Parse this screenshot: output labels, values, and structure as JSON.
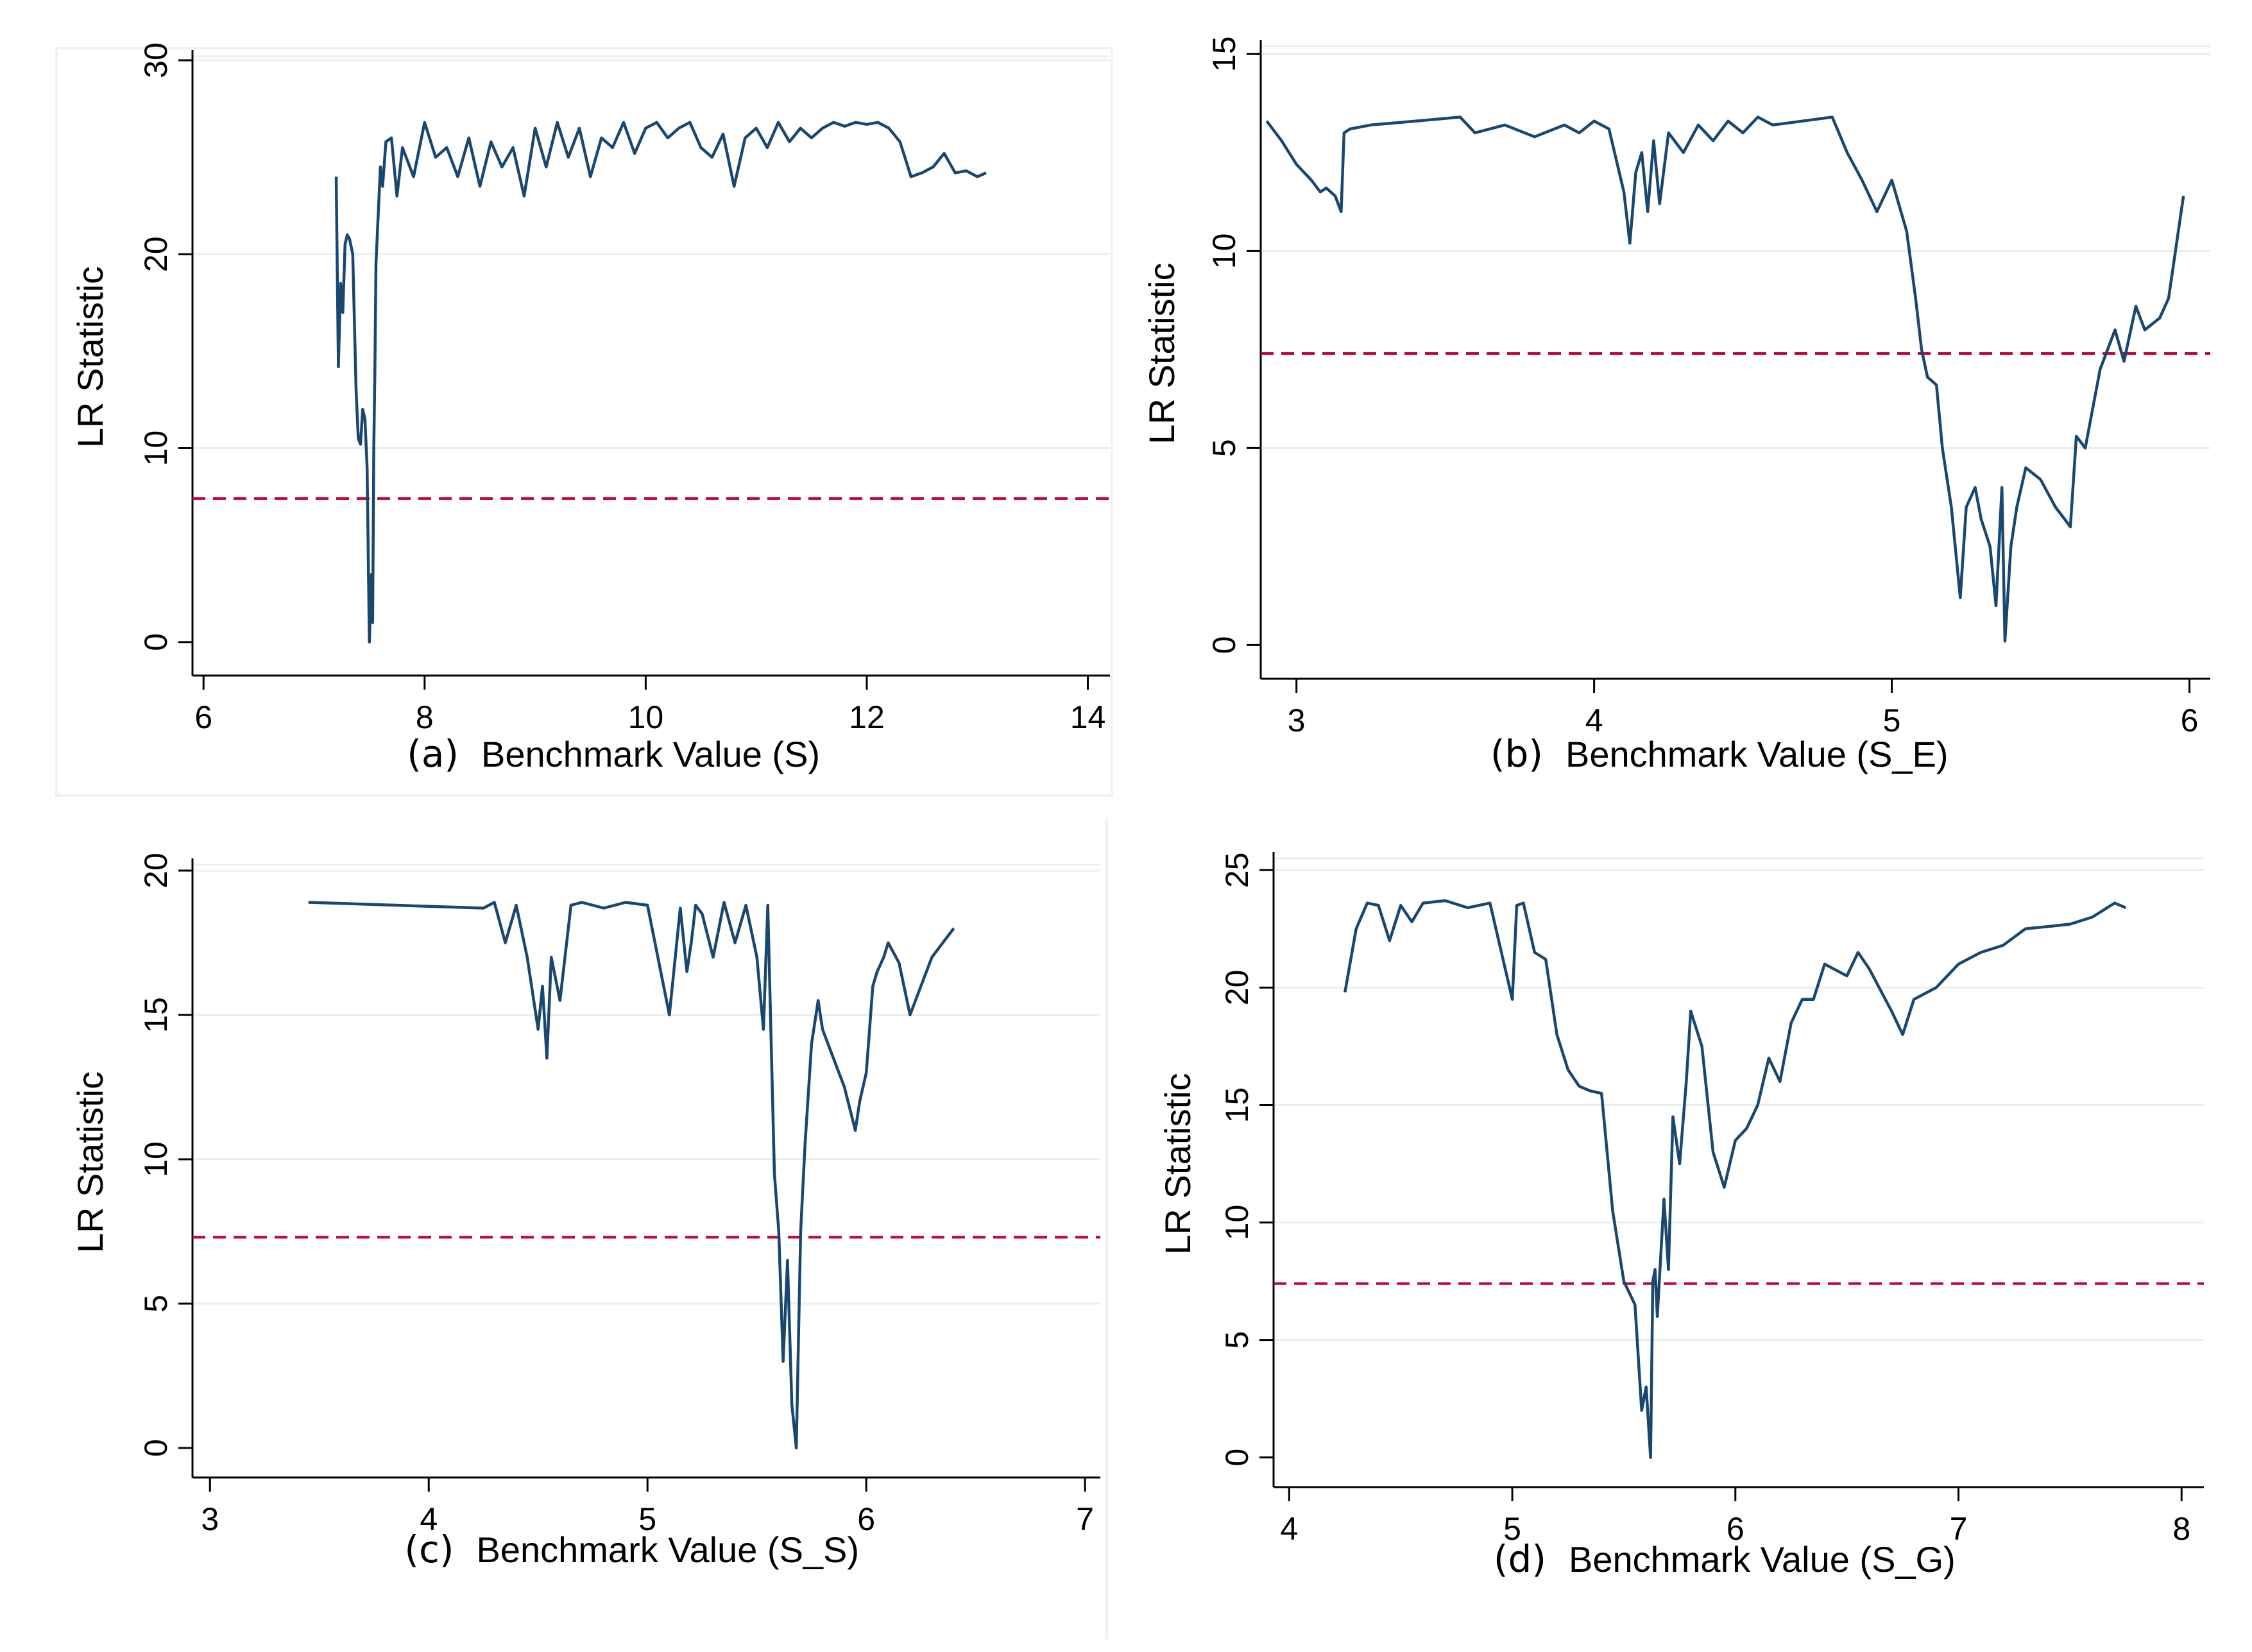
{
  "chart_data": [
    {
      "type": "line",
      "panel": "(a)",
      "xlabel": "Benchmark Value (S)",
      "ylabel": "LR Statistic",
      "xlim": [
        5.9,
        14.2
      ],
      "ylim": [
        -0.8,
        30.2
      ],
      "xticks": [
        6,
        8,
        10,
        12,
        14
      ],
      "yticks": [
        0,
        10,
        20,
        30
      ],
      "reference_line": 7.4,
      "series": [
        {
          "name": "LR Statistic",
          "x": [
            7.2,
            7.22,
            7.24,
            7.26,
            7.28,
            7.3,
            7.32,
            7.35,
            7.38,
            7.4,
            7.42,
            7.44,
            7.46,
            7.48,
            7.5,
            7.52,
            7.53,
            7.54,
            7.55,
            7.56,
            7.58,
            7.6,
            7.62,
            7.65,
            7.7,
            7.75,
            7.8,
            7.9,
            8.0,
            8.1,
            8.2,
            8.3,
            8.4,
            8.5,
            8.6,
            8.7,
            8.8,
            8.9,
            9.0,
            9.1,
            9.2,
            9.3,
            9.4,
            9.5,
            9.6,
            9.7,
            9.8,
            9.9,
            10.0,
            10.1,
            10.2,
            10.3,
            10.4,
            10.5,
            10.6,
            10.7,
            10.8,
            10.9,
            11.0,
            11.1,
            11.2,
            11.3,
            11.4,
            11.5,
            11.6,
            11.7,
            11.8,
            11.9,
            12.0,
            12.1,
            12.2,
            12.3,
            12.4,
            12.5,
            12.6,
            12.7,
            12.8,
            12.9,
            13.0,
            13.08
          ],
          "values": [
            24.0,
            14.2,
            18.5,
            17.0,
            20.5,
            21.0,
            20.8,
            20.0,
            13.0,
            10.5,
            10.2,
            12.0,
            11.5,
            9.0,
            0.0,
            3.5,
            1.0,
            10.0,
            14.0,
            19.5,
            22.0,
            24.5,
            23.5,
            25.8,
            26.0,
            23.0,
            25.5,
            24.0,
            26.8,
            25.0,
            25.5,
            24.0,
            26.0,
            23.5,
            25.8,
            24.5,
            25.5,
            23.0,
            26.5,
            24.5,
            26.8,
            25.0,
            26.5,
            24.0,
            26.0,
            25.5,
            26.8,
            25.2,
            26.5,
            26.8,
            26.0,
            26.5,
            26.8,
            25.5,
            25.0,
            26.2,
            23.5,
            26.0,
            26.5,
            25.5,
            26.8,
            25.8,
            26.5,
            26.0,
            26.5,
            26.8,
            26.6,
            26.8,
            26.7,
            26.8,
            26.5,
            25.8,
            24.0,
            24.2,
            24.5,
            25.2,
            24.2,
            24.3,
            24.0,
            24.2
          ]
        }
      ]
    },
    {
      "type": "line",
      "panel": "(b)",
      "xlabel": "Benchmark Value (S_E)",
      "ylabel": "LR Statistic",
      "xlim": [
        2.88,
        6.07
      ],
      "ylim": [
        -0.4,
        15.2
      ],
      "xticks": [
        3,
        4,
        5,
        6
      ],
      "yticks": [
        0,
        5,
        10,
        15
      ],
      "reference_line": 7.4,
      "series": [
        {
          "name": "LR Statistic",
          "x": [
            2.9,
            2.95,
            3.0,
            3.05,
            3.08,
            3.1,
            3.13,
            3.15,
            3.16,
            3.18,
            3.25,
            3.4,
            3.55,
            3.6,
            3.7,
            3.8,
            3.9,
            3.95,
            4.0,
            4.05,
            4.1,
            4.12,
            4.14,
            4.16,
            4.18,
            4.2,
            4.22,
            4.25,
            4.3,
            4.35,
            4.4,
            4.45,
            4.5,
            4.55,
            4.6,
            4.7,
            4.8,
            4.85,
            4.9,
            4.95,
            5.0,
            5.05,
            5.08,
            5.1,
            5.12,
            5.15,
            5.17,
            5.2,
            5.23,
            5.25,
            5.28,
            5.3,
            5.33,
            5.35,
            5.37,
            5.38,
            5.4,
            5.42,
            5.45,
            5.5,
            5.55,
            5.58,
            5.6,
            5.62,
            5.65,
            5.7,
            5.75,
            5.78,
            5.82,
            5.85,
            5.9,
            5.93,
            5.98
          ],
          "values": [
            13.3,
            12.8,
            12.2,
            11.8,
            11.5,
            11.6,
            11.4,
            11.0,
            13.0,
            13.1,
            13.2,
            13.3,
            13.4,
            13.0,
            13.2,
            12.9,
            13.2,
            13.0,
            13.3,
            13.1,
            11.5,
            10.2,
            12.0,
            12.5,
            11.0,
            12.8,
            11.2,
            13.0,
            12.5,
            13.2,
            12.8,
            13.3,
            13.0,
            13.4,
            13.2,
            13.3,
            13.4,
            12.5,
            11.8,
            11.0,
            11.8,
            10.5,
            8.8,
            7.5,
            6.8,
            6.6,
            5.0,
            3.5,
            1.2,
            3.5,
            4.0,
            3.2,
            2.5,
            1.0,
            4.0,
            0.1,
            2.5,
            3.5,
            4.5,
            4.2,
            3.5,
            3.2,
            3.0,
            5.3,
            5.0,
            7.0,
            8.0,
            7.2,
            8.6,
            8.0,
            8.3,
            8.8,
            11.4
          ]
        }
      ]
    },
    {
      "type": "line",
      "panel": "(c)",
      "xlabel": "Benchmark Value (S_S)",
      "ylabel": "LR Statistic",
      "xlim": [
        2.92,
        7.07
      ],
      "ylim": [
        -0.4,
        20.2
      ],
      "xticks": [
        3,
        4,
        5,
        6,
        7
      ],
      "yticks": [
        0,
        5,
        10,
        15,
        20
      ],
      "reference_line": 7.3,
      "series": [
        {
          "name": "LR Statistic",
          "x": [
            3.45,
            4.25,
            4.3,
            4.35,
            4.4,
            4.45,
            4.5,
            4.52,
            4.54,
            4.56,
            4.6,
            4.65,
            4.7,
            4.8,
            4.9,
            5.0,
            5.1,
            5.15,
            5.18,
            5.2,
            5.22,
            5.25,
            5.3,
            5.35,
            5.4,
            5.45,
            5.5,
            5.53,
            5.55,
            5.58,
            5.6,
            5.62,
            5.64,
            5.66,
            5.68,
            5.7,
            5.72,
            5.75,
            5.78,
            5.8,
            5.85,
            5.9,
            5.95,
            5.97,
            6.0,
            6.03,
            6.05,
            6.08,
            6.1,
            6.15,
            6.2,
            6.25,
            6.3,
            6.35,
            6.4
          ],
          "values": [
            18.9,
            18.7,
            18.9,
            17.5,
            18.8,
            17.0,
            14.5,
            16.0,
            13.5,
            17.0,
            15.5,
            18.8,
            18.9,
            18.7,
            18.9,
            18.8,
            15.0,
            18.7,
            16.5,
            17.5,
            18.8,
            18.5,
            17.0,
            18.9,
            17.5,
            18.8,
            17.0,
            14.5,
            18.8,
            9.5,
            7.5,
            3.0,
            6.5,
            1.5,
            0.0,
            7.5,
            10.5,
            14.0,
            15.5,
            14.5,
            13.5,
            12.5,
            11.0,
            12.0,
            13.0,
            16.0,
            16.5,
            17.0,
            17.5,
            16.8,
            15.0,
            16.0,
            17.0,
            17.5,
            18.0
          ]
        }
      ]
    },
    {
      "type": "line",
      "panel": "(d)",
      "xlabel": "Benchmark Value (S_G)",
      "ylabel": "LR Statistic",
      "xlim": [
        3.93,
        8.1
      ],
      "ylim": [
        -0.5,
        25.5
      ],
      "xticks": [
        4,
        5,
        6,
        7,
        8
      ],
      "yticks": [
        0,
        5,
        10,
        15,
        20,
        25
      ],
      "reference_line": 7.4,
      "series": [
        {
          "name": "LR Statistic",
          "x": [
            4.25,
            4.3,
            4.35,
            4.4,
            4.45,
            4.5,
            4.55,
            4.6,
            4.7,
            4.8,
            4.9,
            5.0,
            5.02,
            5.05,
            5.1,
            5.15,
            5.2,
            5.25,
            5.3,
            5.35,
            5.4,
            5.45,
            5.5,
            5.55,
            5.58,
            5.6,
            5.62,
            5.63,
            5.64,
            5.65,
            5.68,
            5.7,
            5.72,
            5.75,
            5.78,
            5.8,
            5.85,
            5.9,
            5.95,
            6.0,
            6.05,
            6.1,
            6.15,
            6.2,
            6.25,
            6.3,
            6.35,
            6.4,
            6.5,
            6.55,
            6.6,
            6.7,
            6.75,
            6.8,
            6.9,
            7.0,
            7.1,
            7.2,
            7.3,
            7.4,
            7.5,
            7.6,
            7.7,
            7.75
          ],
          "values": [
            19.8,
            22.5,
            23.6,
            23.5,
            22.0,
            23.5,
            22.8,
            23.6,
            23.7,
            23.4,
            23.6,
            19.5,
            23.5,
            23.6,
            21.5,
            21.2,
            18.0,
            16.5,
            15.8,
            15.6,
            15.5,
            10.5,
            7.5,
            6.5,
            2.0,
            3.0,
            0.0,
            7.5,
            8.0,
            6.0,
            11.0,
            8.0,
            14.5,
            12.5,
            16.0,
            19.0,
            17.5,
            13.0,
            11.5,
            13.5,
            14.0,
            15.0,
            17.0,
            16.0,
            18.5,
            19.5,
            19.5,
            21.0,
            20.5,
            21.5,
            20.8,
            19.0,
            18.0,
            19.5,
            20.0,
            21.0,
            21.5,
            21.8,
            22.5,
            22.6,
            22.7,
            23.0,
            23.6,
            23.4
          ]
        }
      ]
    }
  ]
}
